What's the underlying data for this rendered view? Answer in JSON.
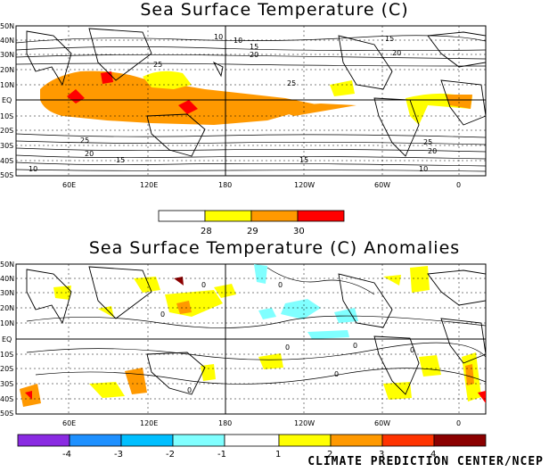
{
  "maps": [
    {
      "title": "Sea Surface Temperature (C)",
      "lat_labels": [
        "50N",
        "40N",
        "30N",
        "20N",
        "10N",
        "EQ",
        "10S",
        "20S",
        "30S",
        "40S",
        "50S"
      ],
      "lon_labels": [
        "60E",
        "120E",
        "180",
        "120W",
        "60W",
        "0"
      ],
      "contour_labels": [
        "10",
        "15",
        "20",
        "25",
        "25",
        "20",
        "15",
        "10",
        "10",
        "15",
        "20",
        "25",
        "25",
        "20",
        "15",
        "10"
      ],
      "colorbar": {
        "colors": [
          "#ffffff",
          "#ffff00",
          "#ff9900",
          "#ff0000"
        ],
        "tick_labels": [
          "28",
          "29",
          "30"
        ]
      }
    },
    {
      "title": "Sea Surface Temperature (C) Anomalies",
      "lat_labels": [
        "50N",
        "40N",
        "30N",
        "20N",
        "10N",
        "EQ",
        "10S",
        "20S",
        "30S",
        "40S",
        "50S"
      ],
      "lon_labels": [
        "60E",
        "120E",
        "180",
        "120W",
        "60W",
        "0"
      ],
      "contour_labels": [
        "0",
        "0",
        "0",
        "0",
        "0",
        "0",
        "0",
        "0"
      ],
      "colorbar": {
        "colors": [
          "#8a2be2",
          "#1e90ff",
          "#00bfff",
          "#80ffff",
          "#ffffff",
          "#ffff00",
          "#ff9900",
          "#ff3300",
          "#8b0000"
        ],
        "tick_labels": [
          "-4",
          "-3",
          "-2",
          "-1",
          "1",
          "2",
          "3",
          "4"
        ]
      }
    }
  ],
  "credit": "CLIMATE PREDICTION CENTER/NCEP"
}
